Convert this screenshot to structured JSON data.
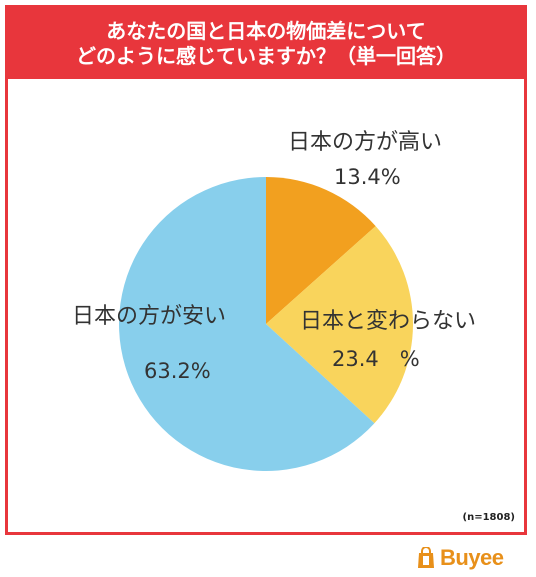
{
  "title": {
    "line1": "あなたの国と日本の物価差について",
    "line2": "どのように感じていますか？（単一回答）"
  },
  "chart_data": {
    "type": "pie",
    "slices": [
      {
        "label": "日本の方が高い",
        "value": 13.4,
        "value_text": "13.4%",
        "color": "#f2a01f"
      },
      {
        "label": "日本と変わらない",
        "value": 23.4,
        "value_text": "23.4　%",
        "color": "#f9d45c"
      },
      {
        "label": "日本の方が安い",
        "value": 63.2,
        "value_text": "63.2%",
        "color": "#88cfec"
      }
    ]
  },
  "note": "(n=1808)",
  "brand": {
    "name": "Buyee",
    "color": "#e8901a"
  },
  "colors": {
    "accent": "#e8363c"
  }
}
